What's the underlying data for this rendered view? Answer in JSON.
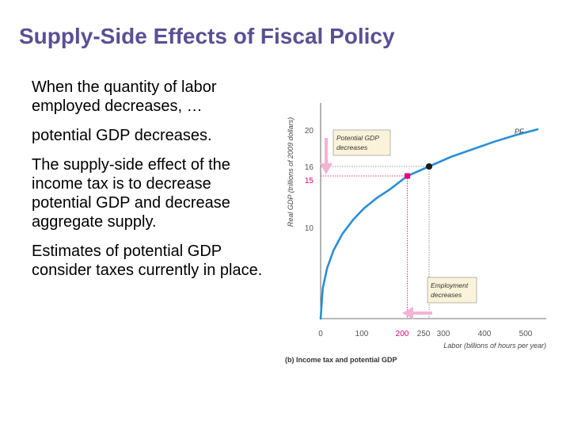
{
  "slide": {
    "title": "Supply-Side Effects of Fiscal Policy",
    "bullets": [
      "When the quantity of labor employed decreases, …",
      "potential GDP decreases.",
      "The supply-side effect of the income tax is to decrease potential GDP and decrease aggregate supply.",
      "Estimates of potential GDP consider taxes currently in place."
    ]
  },
  "chart_data": {
    "type": "line",
    "caption": "(b) Income tax and potential GDP",
    "xlabel": "Labor (billions of hours per year)",
    "ylabel": "Real GDP (trillions of 2009 dollars)",
    "x_ticks": [
      "0",
      "100",
      "200",
      "250",
      "300",
      "400",
      "500"
    ],
    "y_ticks": [
      "10",
      "15",
      "16",
      "20"
    ],
    "xlim": [
      0,
      520
    ],
    "ylim": [
      0,
      22
    ],
    "series": [
      {
        "name": "PF",
        "x": [
          0,
          5,
          15,
          30,
          50,
          75,
          100,
          130,
          160,
          200,
          250,
          300,
          350,
          400,
          450,
          500
        ],
        "y": [
          0,
          3.2,
          5.3,
          7.2,
          8.9,
          10.4,
          11.6,
          12.7,
          13.6,
          15.0,
          16.0,
          17.0,
          17.8,
          18.6,
          19.3,
          19.9
        ]
      }
    ],
    "points": [
      {
        "x": 250,
        "y": 16,
        "color": "#1a1a1a"
      },
      {
        "x": 200,
        "y": 15,
        "color": "#e6007e"
      }
    ],
    "annotations": {
      "potential": [
        "Potential GDP",
        "decreases"
      ],
      "employment": [
        "Employment",
        "decreases"
      ]
    },
    "colors": {
      "curve": "#2a8fd6",
      "highlight": "#e6007e",
      "arrow": "#f1b3d6",
      "box_fill": "#fbf3d9"
    }
  }
}
